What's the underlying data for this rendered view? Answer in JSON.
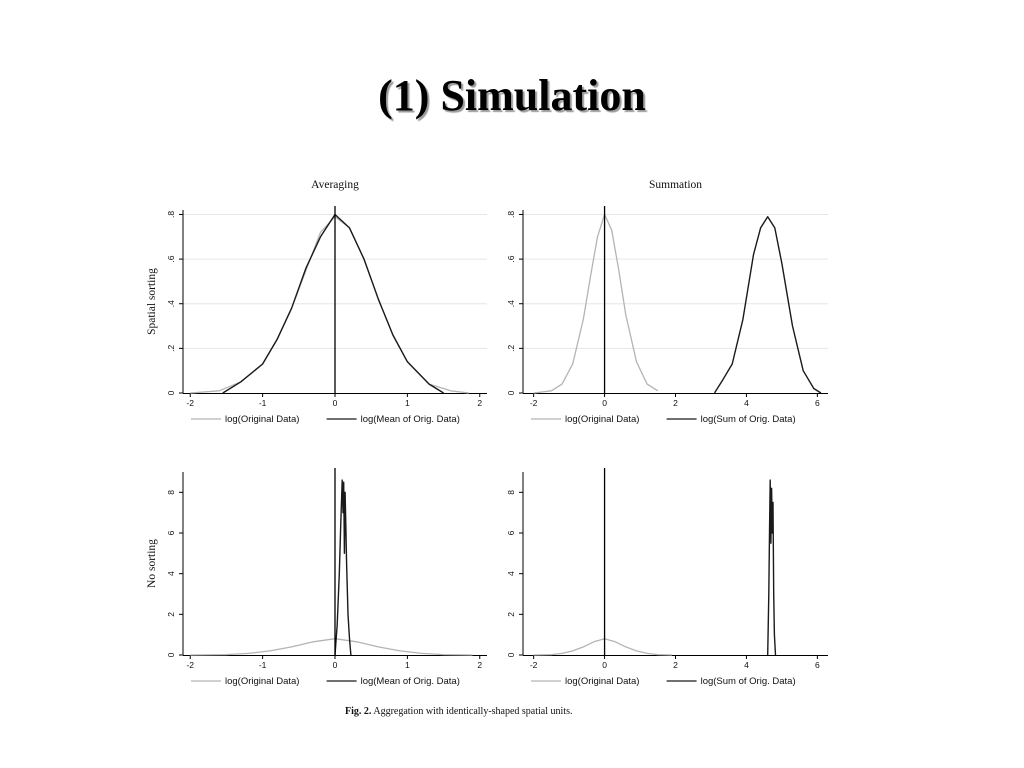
{
  "slide": {
    "title": "(1) Simulation"
  },
  "caption": {
    "label": "Fig. 2.",
    "text": "Aggregation with identically-shaped spatial units."
  },
  "colors": {
    "original": "#b4b4b4",
    "aggregated": "#1a1a1a",
    "grid": "#e6e6e6",
    "refline": "#000000"
  },
  "chart_data": [
    {
      "type": "line",
      "panel": "top-left",
      "column_title": "Averaging",
      "row_title": "Spatial sorting",
      "xlim": [
        -2.1,
        2.1
      ],
      "ylim": [
        0,
        0.82
      ],
      "xticks": [
        -2,
        -1,
        0,
        1,
        2
      ],
      "xtick_labels": [
        "-2",
        "-1",
        "0",
        "1",
        "2"
      ],
      "yticks": [
        0,
        0.2,
        0.4,
        0.6,
        0.8
      ],
      "ytick_labels": [
        "0",
        ".2",
        ".4",
        ".6",
        ".8"
      ],
      "grid": true,
      "vline_x": 0,
      "series": [
        {
          "name": "log(Original Data)",
          "role": "original",
          "x": [
            -2.0,
            -1.6,
            -1.3,
            -1.0,
            -0.8,
            -0.6,
            -0.4,
            -0.2,
            0.0,
            0.2,
            0.4,
            0.6,
            0.8,
            1.0,
            1.3,
            1.6,
            1.85
          ],
          "y": [
            0.0,
            0.01,
            0.05,
            0.13,
            0.24,
            0.38,
            0.55,
            0.72,
            0.79,
            0.74,
            0.6,
            0.42,
            0.26,
            0.14,
            0.04,
            0.01,
            0.0
          ]
        },
        {
          "name": "log(Mean of Orig. Data)",
          "role": "aggregated",
          "x": [
            -1.55,
            -1.3,
            -1.0,
            -0.8,
            -0.6,
            -0.4,
            -0.2,
            0.0,
            0.2,
            0.4,
            0.6,
            0.8,
            1.0,
            1.3,
            1.5
          ],
          "y": [
            0.0,
            0.05,
            0.13,
            0.24,
            0.38,
            0.56,
            0.7,
            0.8,
            0.74,
            0.6,
            0.42,
            0.26,
            0.14,
            0.04,
            0.0
          ]
        }
      ]
    },
    {
      "type": "line",
      "panel": "top-right",
      "column_title": "Summation",
      "row_title": "",
      "xlim": [
        -2.3,
        6.3
      ],
      "ylim": [
        0,
        0.82
      ],
      "xticks": [
        -2,
        0,
        2,
        4,
        6
      ],
      "xtick_labels": [
        "-2",
        "0",
        "2",
        "4",
        "6"
      ],
      "yticks": [
        0,
        0.2,
        0.4,
        0.6,
        0.8
      ],
      "ytick_labels": [
        "0",
        ".2",
        ".4",
        ".6",
        ".8"
      ],
      "grid": true,
      "vline_x": 0,
      "series": [
        {
          "name": "log(Original Data)",
          "role": "original",
          "x": [
            -2.0,
            -1.5,
            -1.2,
            -0.9,
            -0.6,
            -0.4,
            -0.2,
            0.0,
            0.2,
            0.4,
            0.6,
            0.9,
            1.2,
            1.5
          ],
          "y": [
            0.0,
            0.01,
            0.04,
            0.13,
            0.33,
            0.52,
            0.7,
            0.8,
            0.73,
            0.55,
            0.35,
            0.14,
            0.04,
            0.01
          ]
        },
        {
          "name": "log(Sum of Orig. Data)",
          "role": "aggregated",
          "x": [
            3.1,
            3.3,
            3.6,
            3.9,
            4.2,
            4.4,
            4.6,
            4.8,
            5.0,
            5.3,
            5.6,
            5.9,
            6.1
          ],
          "y": [
            0.0,
            0.05,
            0.13,
            0.33,
            0.62,
            0.74,
            0.79,
            0.74,
            0.58,
            0.3,
            0.1,
            0.02,
            0.0
          ]
        }
      ]
    },
    {
      "type": "line",
      "panel": "bottom-left",
      "column_title": "",
      "row_title": "No sorting",
      "xlim": [
        -2.1,
        2.1
      ],
      "ylim": [
        0,
        9
      ],
      "xticks": [
        -2,
        -1,
        0,
        1,
        2
      ],
      "xtick_labels": [
        "-2",
        "-1",
        "0",
        "1",
        "2"
      ],
      "yticks": [
        0,
        2,
        4,
        6,
        8
      ],
      "ytick_labels": [
        "0",
        "2",
        "4",
        "6",
        "8"
      ],
      "grid": false,
      "vline_x": 0,
      "series": [
        {
          "name": "log(Original Data)",
          "role": "original",
          "x": [
            -2.0,
            -1.5,
            -1.2,
            -0.9,
            -0.6,
            -0.3,
            0.0,
            0.3,
            0.6,
            0.9,
            1.2,
            1.5,
            1.9
          ],
          "y": [
            0.0,
            0.02,
            0.08,
            0.2,
            0.4,
            0.65,
            0.8,
            0.65,
            0.4,
            0.2,
            0.08,
            0.02,
            0.0
          ]
        },
        {
          "name": "log(Mean of Orig. Data)",
          "role": "aggregated",
          "x": [
            0.0,
            0.03,
            0.06,
            0.08,
            0.1,
            0.11,
            0.12,
            0.13,
            0.14,
            0.15,
            0.16,
            0.18,
            0.2,
            0.22
          ],
          "y": [
            0.0,
            1.5,
            4.0,
            6.5,
            8.6,
            7.0,
            8.5,
            5.0,
            8.0,
            6.2,
            4.5,
            2.0,
            0.8,
            0.0
          ]
        }
      ]
    },
    {
      "type": "line",
      "panel": "bottom-right",
      "column_title": "",
      "row_title": "",
      "xlim": [
        -2.3,
        6.3
      ],
      "ylim": [
        0,
        9
      ],
      "xticks": [
        -2,
        0,
        2,
        4,
        6
      ],
      "xtick_labels": [
        "-2",
        "0",
        "2",
        "4",
        "6"
      ],
      "yticks": [
        0,
        2,
        4,
        6,
        8
      ],
      "ytick_labels": [
        "0",
        "2",
        "4",
        "6",
        "8"
      ],
      "grid": false,
      "vline_x": 0,
      "series": [
        {
          "name": "log(Original Data)",
          "role": "original",
          "x": [
            -2.0,
            -1.5,
            -1.2,
            -0.9,
            -0.6,
            -0.3,
            0.0,
            0.3,
            0.6,
            0.9,
            1.2,
            1.5,
            1.9
          ],
          "y": [
            0.0,
            0.02,
            0.08,
            0.2,
            0.4,
            0.65,
            0.8,
            0.65,
            0.4,
            0.2,
            0.08,
            0.02,
            0.0
          ]
        },
        {
          "name": "log(Sum of Orig. Data)",
          "role": "aggregated",
          "x": [
            4.6,
            4.63,
            4.65,
            4.67,
            4.69,
            4.71,
            4.73,
            4.75,
            4.77,
            4.79,
            4.82
          ],
          "y": [
            0.0,
            3.0,
            6.0,
            8.6,
            5.5,
            8.2,
            6.0,
            7.5,
            3.0,
            1.0,
            0.0
          ]
        }
      ]
    }
  ]
}
